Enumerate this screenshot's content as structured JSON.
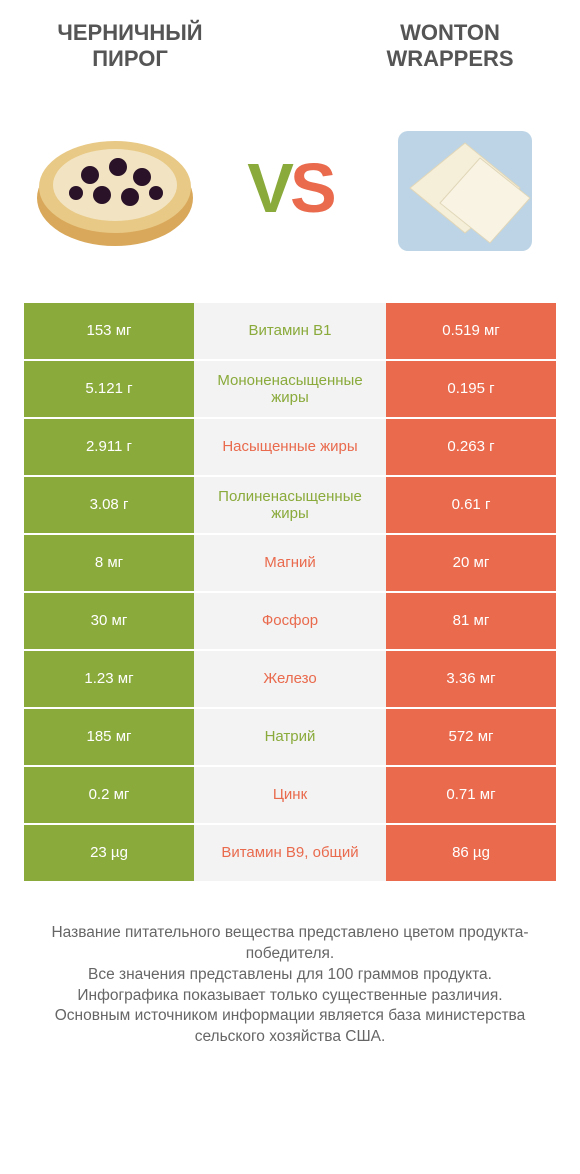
{
  "header": {
    "left_title": "ЧЕРНИЧНЫЙ ПИРОГ",
    "right_title": "WONTON WRAPPERS",
    "vs_v": "V",
    "vs_s": "S"
  },
  "colors": {
    "green": "#8aaa3b",
    "orange": "#e96a4d",
    "mid_bg": "#f3f3f3",
    "text": "#555555"
  },
  "rows": [
    {
      "left": "153 мг",
      "mid": "Витамин B1",
      "right": "0.519 мг",
      "winner": "left"
    },
    {
      "left": "5.121 г",
      "mid": "Мононенасыщенные жиры",
      "right": "0.195 г",
      "winner": "left"
    },
    {
      "left": "2.911 г",
      "mid": "Насыщенные жиры",
      "right": "0.263 г",
      "winner": "right"
    },
    {
      "left": "3.08 г",
      "mid": "Полиненасыщенные жиры",
      "right": "0.61 г",
      "winner": "left"
    },
    {
      "left": "8 мг",
      "mid": "Магний",
      "right": "20 мг",
      "winner": "right"
    },
    {
      "left": "30 мг",
      "mid": "Фосфор",
      "right": "81 мг",
      "winner": "right"
    },
    {
      "left": "1.23 мг",
      "mid": "Железо",
      "right": "3.36 мг",
      "winner": "right"
    },
    {
      "left": "185 мг",
      "mid": "Натрий",
      "right": "572 мг",
      "winner": "left"
    },
    {
      "left": "0.2 мг",
      "mid": "Цинк",
      "right": "0.71 мг",
      "winner": "right"
    },
    {
      "left": "23 µg",
      "mid": "Витамин B9, общий",
      "right": "86 µg",
      "winner": "right"
    }
  ],
  "footer": {
    "line1": "Название питательного вещества представлено цветом продукта-победителя.",
    "line2": "Все значения представлены для 100 граммов продукта.",
    "line3": "Инфографика показывает только существенные различия.",
    "line4": "Основным источником информации является база министерства сельского хозяйства США."
  }
}
